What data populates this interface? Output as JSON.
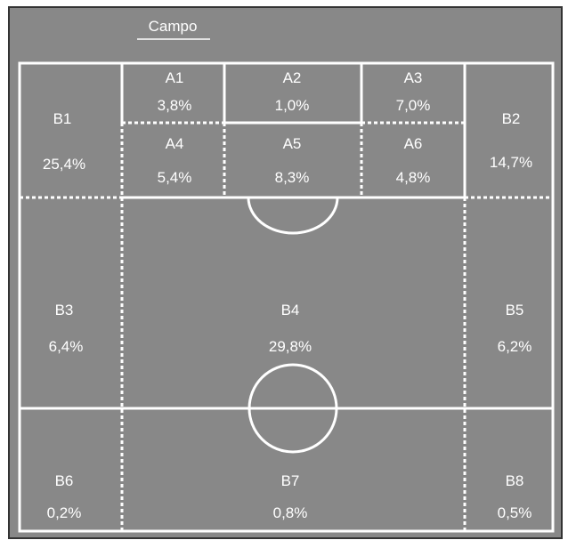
{
  "title": "Campo",
  "zones": [
    {
      "id": "A1",
      "label": "A1",
      "value": "3,8%"
    },
    {
      "id": "A2",
      "label": "A2",
      "value": "1,0%"
    },
    {
      "id": "A3",
      "label": "A3",
      "value": "7,0%"
    },
    {
      "id": "A4",
      "label": "A4",
      "value": "5,4%"
    },
    {
      "id": "A5",
      "label": "A5",
      "value": "8,3%"
    },
    {
      "id": "A6",
      "label": "A6",
      "value": "4,8%"
    },
    {
      "id": "B1",
      "label": "B1",
      "value": "25,4%"
    },
    {
      "id": "B2",
      "label": "B2",
      "value": "14,7%"
    },
    {
      "id": "B3",
      "label": "B3",
      "value": "6,4%"
    },
    {
      "id": "B4",
      "label": "B4",
      "value": "29,8%"
    },
    {
      "id": "B5",
      "label": "B5",
      "value": "6,2%"
    },
    {
      "id": "B6",
      "label": "B6",
      "value": "0,2%"
    },
    {
      "id": "B7",
      "label": "B7",
      "value": "0,8%"
    },
    {
      "id": "B8",
      "label": "B8",
      "value": "0,5%"
    }
  ],
  "colors": {
    "field": "#888888",
    "border": "#333333",
    "lines": "#ffffff"
  }
}
